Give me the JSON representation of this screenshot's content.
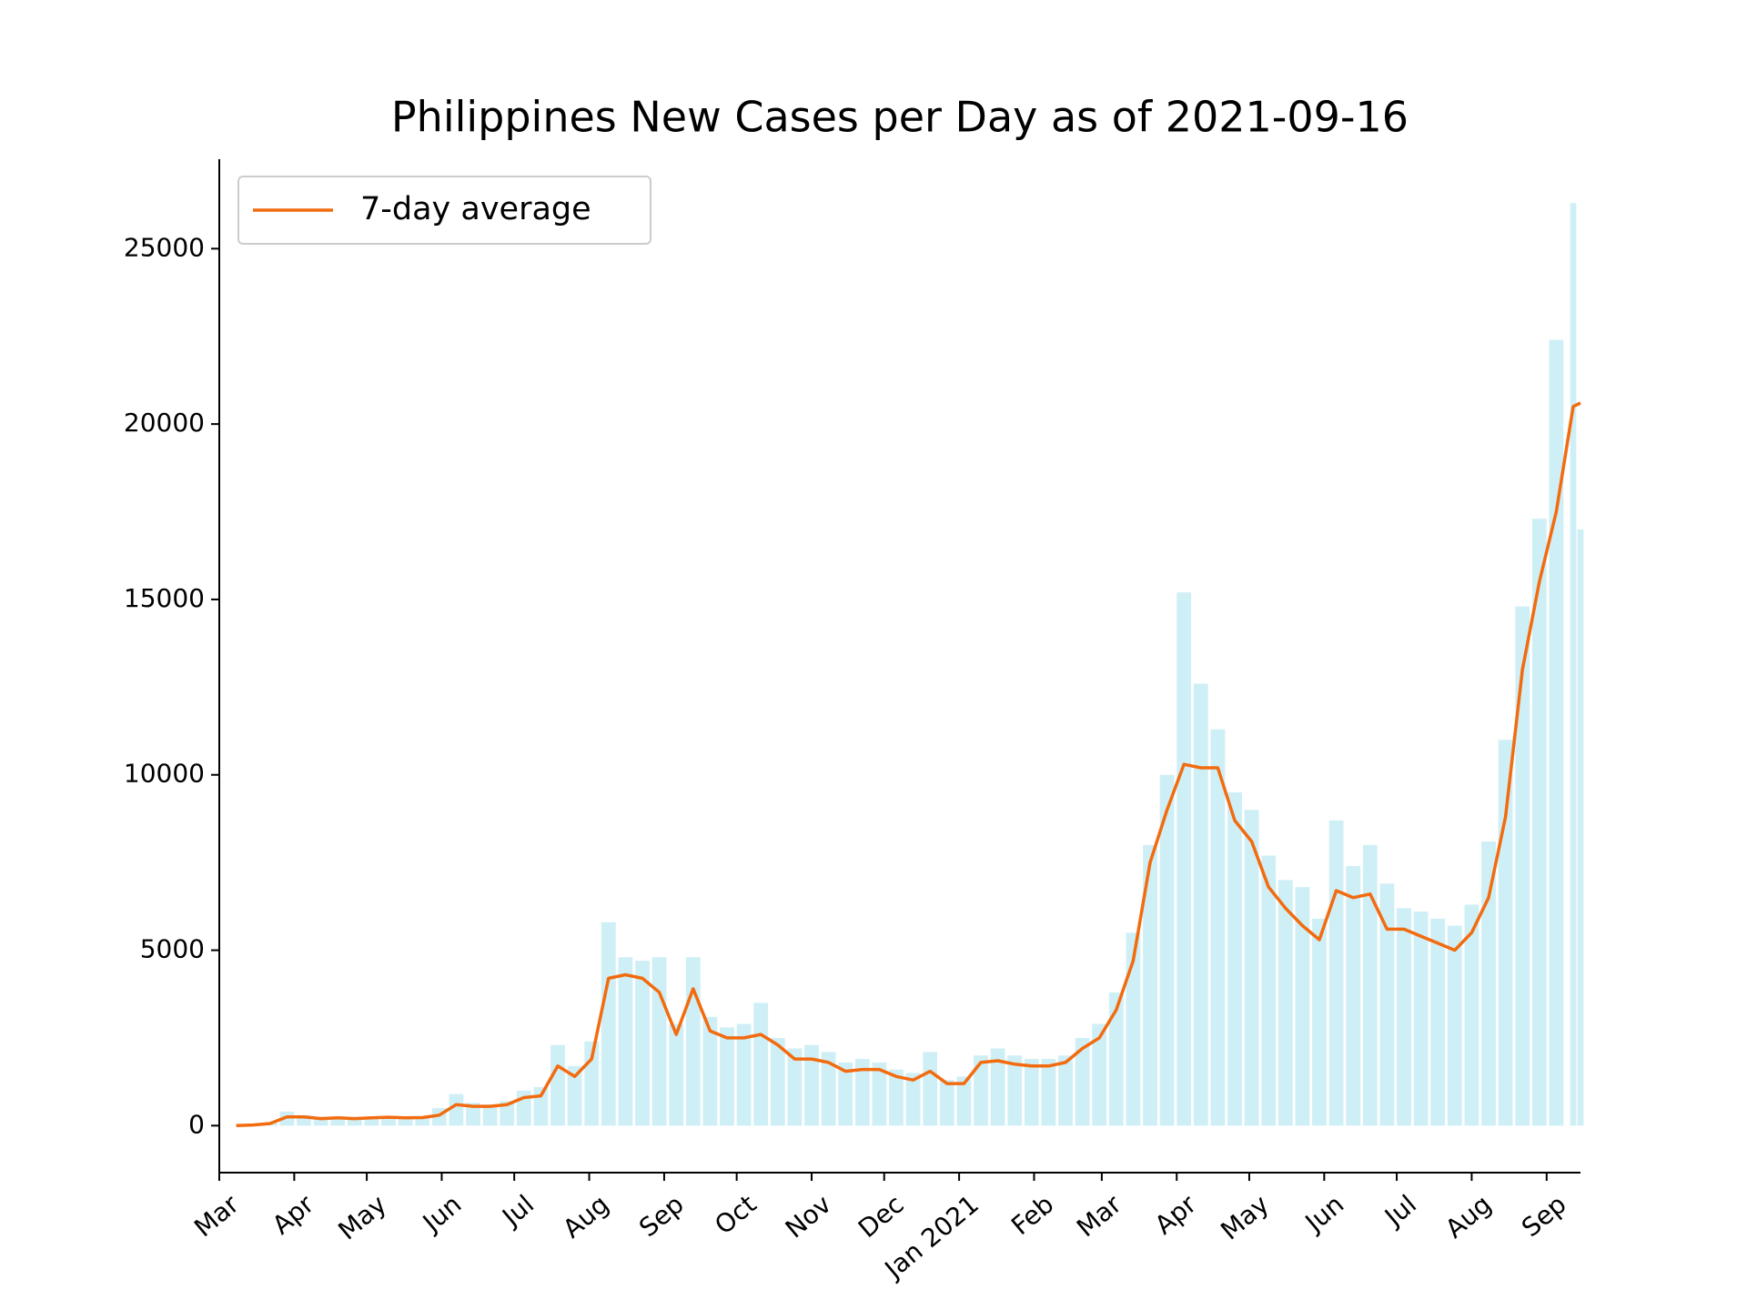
{
  "chart_data": {
    "type": "line",
    "title": "Philippines New Cases per Day as of 2021-09-16",
    "x": [
      "2020-03-08",
      "2020-03-15",
      "2020-03-22",
      "2020-03-29",
      "2020-04-05",
      "2020-04-12",
      "2020-04-19",
      "2020-04-26",
      "2020-05-03",
      "2020-05-10",
      "2020-05-17",
      "2020-05-24",
      "2020-05-31",
      "2020-06-07",
      "2020-06-14",
      "2020-06-21",
      "2020-06-28",
      "2020-07-05",
      "2020-07-12",
      "2020-07-19",
      "2020-07-26",
      "2020-08-02",
      "2020-08-09",
      "2020-08-16",
      "2020-08-23",
      "2020-08-30",
      "2020-09-06",
      "2020-09-13",
      "2020-09-20",
      "2020-09-27",
      "2020-10-04",
      "2020-10-11",
      "2020-10-18",
      "2020-10-25",
      "2020-11-01",
      "2020-11-08",
      "2020-11-15",
      "2020-11-22",
      "2020-11-29",
      "2020-12-06",
      "2020-12-13",
      "2020-12-20",
      "2020-12-27",
      "2021-01-03",
      "2021-01-10",
      "2021-01-17",
      "2021-01-24",
      "2021-01-31",
      "2021-02-07",
      "2021-02-14",
      "2021-02-21",
      "2021-02-28",
      "2021-03-07",
      "2021-03-14",
      "2021-03-21",
      "2021-03-28",
      "2021-04-04",
      "2021-04-11",
      "2021-04-18",
      "2021-04-25",
      "2021-05-02",
      "2021-05-09",
      "2021-05-16",
      "2021-05-23",
      "2021-05-30",
      "2021-06-06",
      "2021-06-13",
      "2021-06-20",
      "2021-06-27",
      "2021-07-04",
      "2021-07-11",
      "2021-07-18",
      "2021-07-25",
      "2021-08-01",
      "2021-08-08",
      "2021-08-15",
      "2021-08-22",
      "2021-08-29",
      "2021-09-05",
      "2021-09-12",
      "2021-09-15"
    ],
    "series": [
      {
        "name": "7-day average",
        "color": "#f26b0f",
        "values": [
          0,
          20,
          60,
          250,
          250,
          200,
          220,
          200,
          220,
          240,
          220,
          230,
          300,
          600,
          550,
          550,
          600,
          800,
          850,
          1700,
          1400,
          1900,
          4200,
          4300,
          4200,
          3800,
          2600,
          3900,
          2700,
          2500,
          2500,
          2600,
          2300,
          1900,
          1900,
          1800,
          1550,
          1600,
          1600,
          1400,
          1300,
          1550,
          1200,
          1200,
          1800,
          1850,
          1750,
          1700,
          1700,
          1800,
          2200,
          2500,
          3300,
          4700,
          7500,
          9000,
          10300,
          10200,
          10200,
          8700,
          8100,
          6800,
          6200,
          5700,
          5300,
          6700,
          6500,
          6600,
          5600,
          5600,
          5400,
          5200,
          5000,
          5500,
          6500,
          8800,
          13000,
          15500,
          17500,
          20500,
          20600
        ]
      }
    ],
    "daily": {
      "color": "#cfeff6",
      "values": [
        0,
        30,
        80,
        400,
        300,
        250,
        260,
        230,
        250,
        280,
        260,
        270,
        500,
        900,
        650,
        600,
        700,
        1000,
        1100,
        2300,
        1700,
        2400,
        5800,
        4800,
        4700,
        4800,
        2900,
        4800,
        3100,
        2800,
        2900,
        3500,
        2500,
        2200,
        2300,
        2100,
        1800,
        1900,
        1800,
        1600,
        1500,
        2100,
        1300,
        1400,
        2000,
        2200,
        2000,
        1900,
        1900,
        2000,
        2500,
        2900,
        3800,
        5500,
        8000,
        10000,
        15200,
        12600,
        11300,
        9500,
        9000,
        7700,
        7000,
        6800,
        5900,
        8700,
        7400,
        8000,
        6900,
        6200,
        6100,
        5900,
        5700,
        6300,
        8100,
        11000,
        14800,
        17300,
        22400,
        26300,
        17000
      ]
    },
    "xlim": [
      "2020-03-01",
      "2021-09-15"
    ],
    "xticks": [
      {
        "value": "2020-03-01",
        "label": "Mar"
      },
      {
        "value": "2020-04-01",
        "label": "Apr"
      },
      {
        "value": "2020-05-01",
        "label": "May"
      },
      {
        "value": "2020-06-01",
        "label": "Jun"
      },
      {
        "value": "2020-07-01",
        "label": "Jul"
      },
      {
        "value": "2020-08-01",
        "label": "Aug"
      },
      {
        "value": "2020-09-01",
        "label": "Sep"
      },
      {
        "value": "2020-10-01",
        "label": "Oct"
      },
      {
        "value": "2020-11-01",
        "label": "Nov"
      },
      {
        "value": "2020-12-01",
        "label": "Dec"
      },
      {
        "value": "2021-01-01",
        "label": "Jan 2021"
      },
      {
        "value": "2021-02-01",
        "label": "Feb"
      },
      {
        "value": "2021-03-01",
        "label": "Mar"
      },
      {
        "value": "2021-04-01",
        "label": "Apr"
      },
      {
        "value": "2021-05-01",
        "label": "May"
      },
      {
        "value": "2021-06-01",
        "label": "Jun"
      },
      {
        "value": "2021-07-01",
        "label": "Jul"
      },
      {
        "value": "2021-08-01",
        "label": "Aug"
      },
      {
        "value": "2021-09-01",
        "label": "Sep"
      }
    ],
    "ylim": [
      -1340,
      27550
    ],
    "yticks": [
      0,
      5000,
      10000,
      15000,
      20000,
      25000
    ],
    "legend": "upper left"
  }
}
